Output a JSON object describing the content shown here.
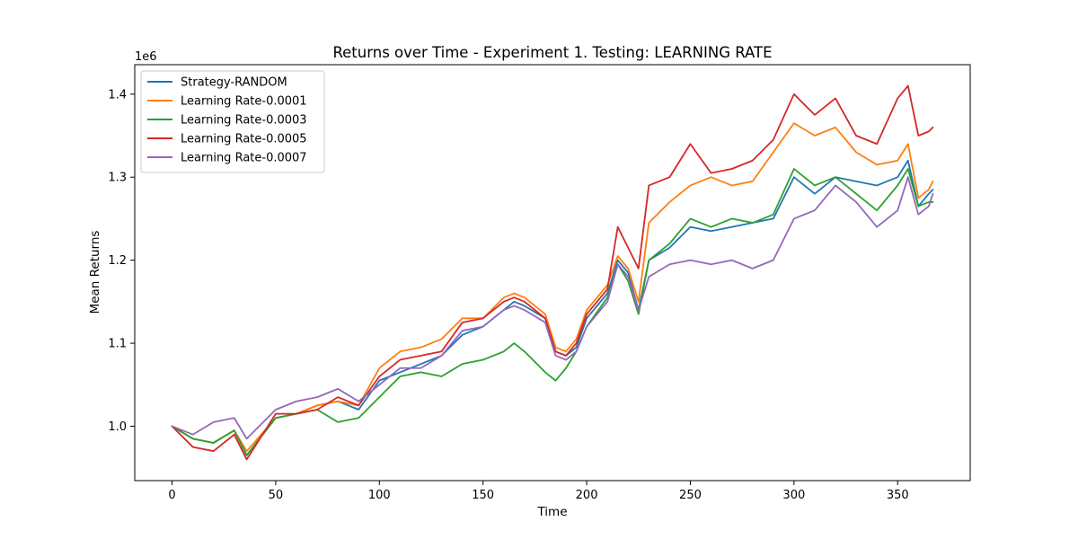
{
  "chart_data": {
    "type": "line",
    "title": "Returns over Time - Experiment 1. Testing: LEARNING RATE",
    "xlabel": "Time",
    "ylabel": "Mean Returns",
    "y_offset_label": "1e6",
    "y_scale_multiplier": 1000000,
    "xlim": [
      -18,
      385
    ],
    "ylim": [
      0.9345,
      1.4355
    ],
    "x_ticks": [
      0,
      50,
      100,
      150,
      200,
      250,
      300,
      350
    ],
    "y_ticks": [
      1.0,
      1.1,
      1.2,
      1.3,
      1.4
    ],
    "y_tick_labels": [
      "1.0",
      "1.1",
      "1.2",
      "1.3",
      "1.4"
    ],
    "grid": false,
    "legend_position": "upper left",
    "x": [
      0,
      10,
      20,
      30,
      36,
      50,
      60,
      70,
      80,
      90,
      100,
      110,
      120,
      130,
      140,
      150,
      160,
      165,
      170,
      180,
      185,
      190,
      195,
      200,
      210,
      215,
      220,
      225,
      230,
      240,
      250,
      260,
      270,
      280,
      290,
      300,
      310,
      320,
      330,
      340,
      350,
      355,
      360,
      365,
      367
    ],
    "series": [
      {
        "name": "Strategy-RANDOM",
        "color": "#1f77b4",
        "values": [
          1.0,
          0.985,
          0.98,
          0.995,
          0.965,
          1.01,
          1.015,
          1.025,
          1.03,
          1.02,
          1.055,
          1.065,
          1.075,
          1.085,
          1.11,
          1.12,
          1.14,
          1.15,
          1.145,
          1.13,
          1.09,
          1.085,
          1.095,
          1.13,
          1.16,
          1.2,
          1.185,
          1.14,
          1.2,
          1.215,
          1.24,
          1.235,
          1.24,
          1.245,
          1.25,
          1.3,
          1.28,
          1.3,
          1.295,
          1.29,
          1.3,
          1.32,
          1.265,
          1.28,
          1.285
        ]
      },
      {
        "name": "Learning Rate-0.0001",
        "color": "#ff7f0e",
        "values": [
          1.0,
          0.985,
          0.98,
          0.995,
          0.97,
          1.01,
          1.015,
          1.025,
          1.03,
          1.025,
          1.07,
          1.09,
          1.095,
          1.105,
          1.13,
          1.13,
          1.155,
          1.16,
          1.155,
          1.135,
          1.095,
          1.09,
          1.105,
          1.14,
          1.17,
          1.205,
          1.19,
          1.15,
          1.245,
          1.27,
          1.29,
          1.3,
          1.29,
          1.295,
          1.33,
          1.365,
          1.35,
          1.36,
          1.33,
          1.315,
          1.32,
          1.34,
          1.275,
          1.285,
          1.295
        ]
      },
      {
        "name": "Learning Rate-0.0003",
        "color": "#2ca02c",
        "values": [
          1.0,
          0.985,
          0.98,
          0.995,
          0.965,
          1.01,
          1.015,
          1.02,
          1.005,
          1.01,
          1.035,
          1.06,
          1.065,
          1.06,
          1.075,
          1.08,
          1.09,
          1.1,
          1.09,
          1.065,
          1.055,
          1.07,
          1.09,
          1.12,
          1.155,
          1.195,
          1.175,
          1.135,
          1.2,
          1.22,
          1.25,
          1.24,
          1.25,
          1.245,
          1.255,
          1.31,
          1.29,
          1.3,
          1.28,
          1.26,
          1.29,
          1.31,
          1.265,
          1.27,
          1.27
        ]
      },
      {
        "name": "Learning Rate-0.0005",
        "color": "#d62728",
        "values": [
          1.0,
          0.975,
          0.97,
          0.99,
          0.96,
          1.015,
          1.015,
          1.02,
          1.035,
          1.025,
          1.06,
          1.08,
          1.085,
          1.09,
          1.125,
          1.13,
          1.15,
          1.155,
          1.15,
          1.13,
          1.09,
          1.085,
          1.1,
          1.135,
          1.165,
          1.24,
          1.215,
          1.19,
          1.29,
          1.3,
          1.34,
          1.305,
          1.31,
          1.32,
          1.345,
          1.4,
          1.375,
          1.395,
          1.35,
          1.34,
          1.395,
          1.41,
          1.35,
          1.355,
          1.36
        ]
      },
      {
        "name": "Learning Rate-0.0007",
        "color": "#9467bd",
        "values": [
          1.0,
          0.99,
          1.005,
          1.01,
          0.985,
          1.02,
          1.03,
          1.035,
          1.045,
          1.03,
          1.05,
          1.07,
          1.07,
          1.085,
          1.115,
          1.12,
          1.14,
          1.145,
          1.14,
          1.125,
          1.085,
          1.08,
          1.09,
          1.12,
          1.15,
          1.195,
          1.18,
          1.14,
          1.18,
          1.195,
          1.2,
          1.195,
          1.2,
          1.19,
          1.2,
          1.25,
          1.26,
          1.29,
          1.27,
          1.24,
          1.26,
          1.3,
          1.255,
          1.265,
          1.28
        ]
      }
    ]
  }
}
